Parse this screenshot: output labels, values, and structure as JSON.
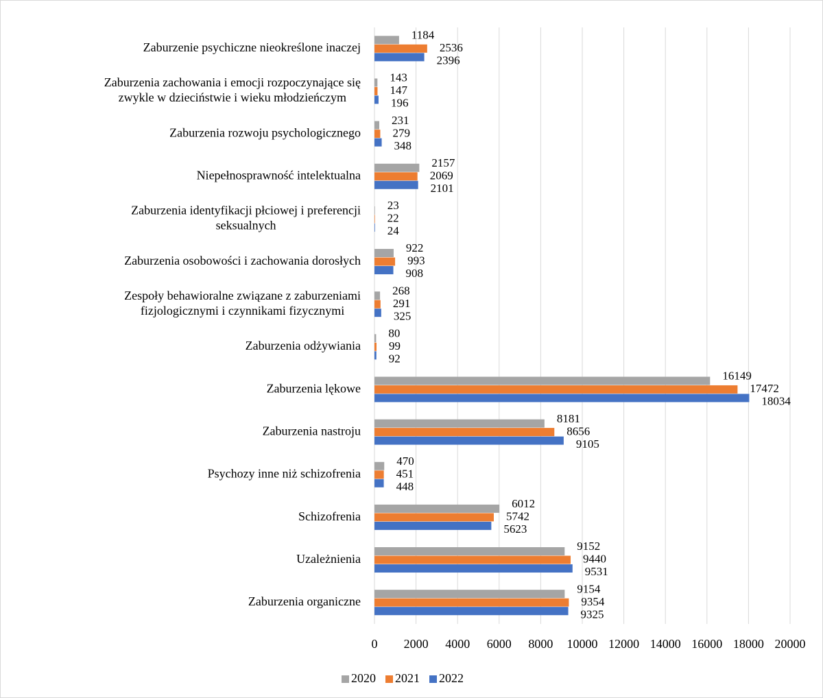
{
  "chart_data": {
    "type": "bar",
    "orientation": "horizontal",
    "categories": [
      "Zaburzenie psychiczne nieokreślone inaczej",
      "Zaburzenia zachowania i emocji rozpoczynające się\nzwykle w dzieciństwie i wieku młodzieńczym",
      "Zaburzenia rozwoju psychologicznego",
      "Niepełnosprawność intelektualna",
      "Zaburzenia identyfikacji płciowej i preferencji\nseksualnych",
      "Zaburzenia osobowości i zachowania dorosłych",
      "Zespoły behawioralne związane z zaburzeniami\nfizjologicznymi i czynnikami fizycznymi",
      "Zaburzenia odżywiania",
      "Zaburzenia lękowe",
      "Zaburzenia nastroju",
      "Psychozy inne niż schizofrenia",
      "Schizofrenia",
      "Uzależnienia",
      "Zaburzenia organiczne"
    ],
    "series": [
      {
        "name": "2020",
        "color": "#a5a5a5",
        "values": [
          1184,
          143,
          231,
          2157,
          23,
          922,
          268,
          80,
          16149,
          8181,
          470,
          6012,
          9152,
          9154
        ]
      },
      {
        "name": "2021",
        "color": "#ed7d31",
        "values": [
          2536,
          147,
          279,
          2069,
          22,
          993,
          291,
          99,
          17472,
          8656,
          451,
          5742,
          9440,
          9354
        ]
      },
      {
        "name": "2022",
        "color": "#4472c4",
        "values": [
          2396,
          196,
          348,
          2101,
          24,
          908,
          325,
          92,
          18034,
          9105,
          448,
          5623,
          9531,
          9325
        ]
      }
    ],
    "xlim": [
      0,
      20000
    ],
    "xticks": [
      0,
      2000,
      4000,
      6000,
      8000,
      10000,
      12000,
      14000,
      16000,
      18000,
      20000
    ],
    "grid": true,
    "legend": "bottom"
  }
}
